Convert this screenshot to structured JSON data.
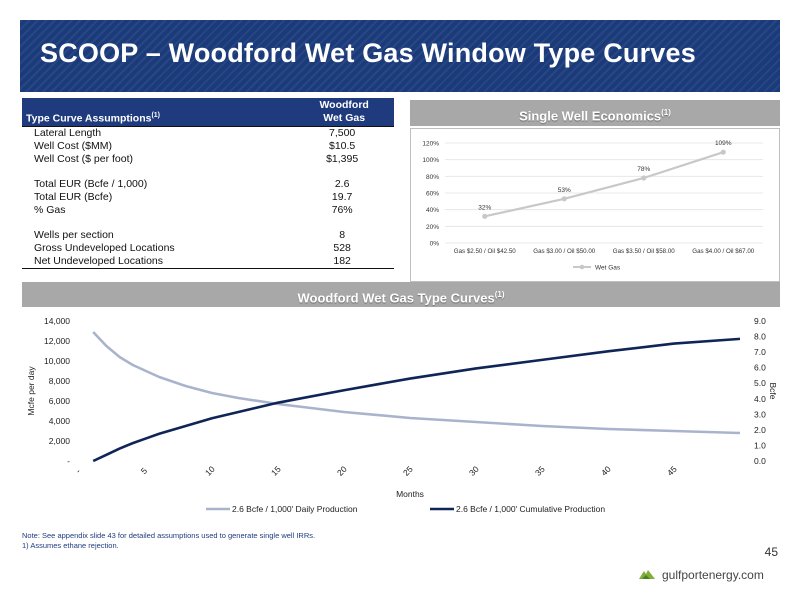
{
  "slide": {
    "title": "SCOOP – Woodford Wet Gas Window Type Curves",
    "page_number": "45",
    "note_line1": "Note: See appendix slide 43 for detailed assumptions used to generate single well IRRs.",
    "note_line2": "1)      Assumes ethane rejection.",
    "logo_text": "gulfportenergy.com"
  },
  "assumptions": {
    "header_label": "Type Curve Assumptions",
    "header_sup": "(1)",
    "col_header_line1": "Woodford",
    "col_header_line2": "Wet Gas",
    "rows": [
      {
        "label": "Lateral Length",
        "value": "7,500"
      },
      {
        "label": "Well Cost ($MM)",
        "value": "$10.5"
      },
      {
        "label": "Well Cost ($ per foot)",
        "value": "$1,395"
      },
      {
        "label": "",
        "value": ""
      },
      {
        "label": "Total EUR (Bcfe / 1,000)",
        "value": "2.6"
      },
      {
        "label": "Total EUR (Bcfe)",
        "value": "19.7"
      },
      {
        "label": "% Gas",
        "value": "76%"
      },
      {
        "label": "",
        "value": ""
      },
      {
        "label": "Wells per section",
        "value": "8"
      },
      {
        "label": "Gross Undeveloped Locations",
        "value": "528"
      },
      {
        "label": "Net Undeveloped Locations",
        "value": "182"
      }
    ]
  },
  "panels": {
    "econ_title": "Single Well Economics",
    "econ_sup": "(1)",
    "curve_title": "Woodford Wet Gas Type Curves",
    "curve_sup": "(1)"
  },
  "colors": {
    "navy": "#1f3b7e",
    "header_band": "#1a3a7a",
    "panel_gray": "#a8a8a8",
    "light_series": "#a9b4cc",
    "dark_series": "#0f2557",
    "econ_line": "#c8c8c8"
  },
  "chart_data": [
    {
      "type": "line",
      "title": "Single Well Economics",
      "categories": [
        "Gas $2.50 / Oil $42.50",
        "Gas $3.00 / Oil $50.00",
        "Gas $3.50 / Oil $58.00",
        "Gas $4.00 / Oil $67.00"
      ],
      "series": [
        {
          "name": "Wet Gas",
          "values": [
            32,
            53,
            78,
            109
          ],
          "labels": [
            "32%",
            "53%",
            "78%",
            "109%"
          ]
        }
      ],
      "ylim": [
        0,
        120
      ],
      "y_ticks": [
        "0%",
        "20%",
        "40%",
        "60%",
        "80%",
        "100%",
        "120%"
      ],
      "y_tick_values": [
        0,
        20,
        40,
        60,
        80,
        100,
        120
      ],
      "grid": true,
      "legend": "bottom"
    },
    {
      "type": "line",
      "title": "Woodford Wet Gas Type Curves",
      "xlabel": "Months",
      "ylabel": "Mcfe per day",
      "y2label": "Bcfe",
      "xlim": [
        1,
        50
      ],
      "ylim": [
        0,
        14000
      ],
      "y2lim": [
        0,
        9
      ],
      "x_ticks": [
        "-",
        "5",
        "10",
        "15",
        "20",
        "25",
        "30",
        "35",
        "40",
        "45"
      ],
      "x_tick_values": [
        0,
        5,
        10,
        15,
        20,
        25,
        30,
        35,
        40,
        45
      ],
      "y_ticks": [
        "-",
        "2,000",
        "4,000",
        "6,000",
        "8,000",
        "10,000",
        "12,000",
        "14,000"
      ],
      "y_tick_values": [
        0,
        2000,
        4000,
        6000,
        8000,
        10000,
        12000,
        14000
      ],
      "y2_ticks": [
        "0.0",
        "1.0",
        "2.0",
        "3.0",
        "4.0",
        "5.0",
        "6.0",
        "7.0",
        "8.0",
        "9.0"
      ],
      "y2_tick_values": [
        0,
        1,
        2,
        3,
        4,
        5,
        6,
        7,
        8,
        9
      ],
      "grid": false,
      "legend": "bottom",
      "series": [
        {
          "name": "2.6 Bcfe / 1,000' Daily Production",
          "axis": "left",
          "x": [
            1,
            2,
            3,
            4,
            5,
            6,
            8,
            10,
            12,
            15,
            20,
            25,
            30,
            35,
            40,
            45,
            50
          ],
          "values": [
            12900,
            11500,
            10400,
            9600,
            9000,
            8400,
            7500,
            6800,
            6300,
            5700,
            4900,
            4300,
            3900,
            3500,
            3200,
            3000,
            2800
          ]
        },
        {
          "name": "2.6 Bcfe / 1,000' Cumulative Production",
          "axis": "right",
          "x": [
            1,
            2,
            3,
            4,
            5,
            6,
            8,
            10,
            12,
            15,
            20,
            25,
            30,
            35,
            40,
            45,
            50
          ],
          "values": [
            0.0,
            0.4,
            0.8,
            1.15,
            1.45,
            1.75,
            2.25,
            2.75,
            3.15,
            3.75,
            4.55,
            5.3,
            5.95,
            6.5,
            7.05,
            7.55,
            7.85
          ]
        }
      ]
    }
  ]
}
